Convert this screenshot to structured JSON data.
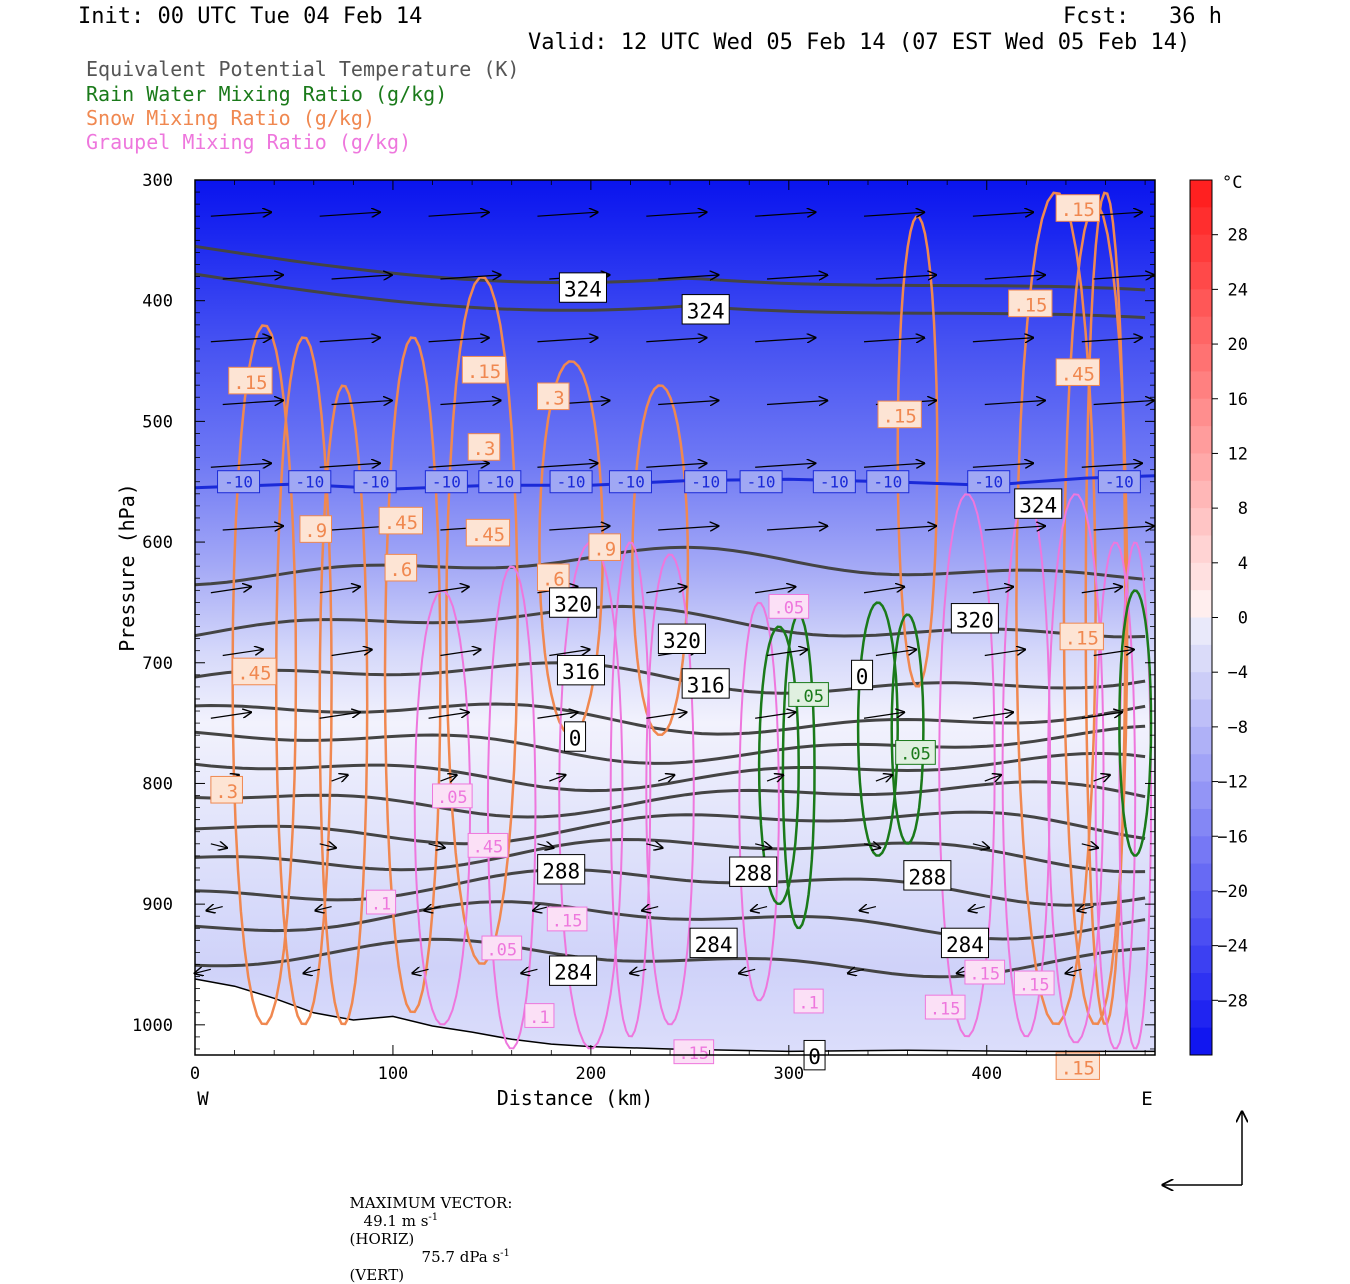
{
  "header": {
    "init": "Init: 00 UTC Tue 04 Feb 14",
    "fcst": "Fcst:   36 h",
    "valid": "Valid: 12 UTC Wed 05 Feb 14 (07 EST Wed 05 Feb 14)"
  },
  "legend": [
    {
      "text": "Equivalent Potential Temperature (K)",
      "color": "#555555"
    },
    {
      "text": "Rain Water Mixing Ratio (g/kg)",
      "color": "#1a7a1a"
    },
    {
      "text": "Snow Mixing Ratio (g/kg)",
      "color": "#f08850"
    },
    {
      "text": "Graupel Mixing Ratio (g/kg)",
      "color": "#ee77dd"
    }
  ],
  "footer": {
    "max_vector_label": "MAXIMUM VECTOR:",
    "horiz": "49.1 m s",
    "horiz_unit": "(HORIZ)",
    "vert": "75.7 dPa s",
    "vert_unit": "(VERT)",
    "exp": "-1"
  },
  "chart_data": {
    "type": "contour cross-section",
    "xlabel": "Distance (km)",
    "ylabel": "Pressure (hPa)",
    "xlim": [
      0,
      485
    ],
    "ylim": [
      1025,
      300
    ],
    "xticks": [
      0,
      100,
      200,
      300,
      400
    ],
    "yticks": [
      300,
      400,
      500,
      600,
      700,
      800,
      900,
      1000
    ],
    "x_end_labels": {
      "left": "W",
      "right": "E"
    },
    "colorbar": {
      "unit": "°C",
      "ticks": [
        28,
        24,
        20,
        16,
        12,
        8,
        4,
        0,
        -4,
        -8,
        -12,
        -16,
        -20,
        -24,
        -28
      ],
      "range": [
        -32,
        32
      ]
    },
    "theta_e_contours": [
      {
        "label": "324",
        "x": 196,
        "p": 390
      },
      {
        "label": "324",
        "x": 258,
        "p": 408
      },
      {
        "label": "320",
        "x": 191,
        "p": 651
      },
      {
        "label": "320",
        "x": 246,
        "p": 681
      },
      {
        "label": "320",
        "x": 394,
        "p": 664
      },
      {
        "label": "316",
        "x": 195,
        "p": 707
      },
      {
        "label": "316",
        "x": 258,
        "p": 718
      },
      {
        "label": "324",
        "x": 426,
        "p": 569
      },
      {
        "label": "288",
        "x": 185,
        "p": 872
      },
      {
        "label": "288",
        "x": 282,
        "p": 874
      },
      {
        "label": "288",
        "x": 370,
        "p": 877
      },
      {
        "label": "284",
        "x": 191,
        "p": 956
      },
      {
        "label": "284",
        "x": 262,
        "p": 933
      },
      {
        "label": "284",
        "x": 389,
        "p": 933
      },
      {
        "label": "0",
        "x": 192,
        "p": 762
      },
      {
        "label": "0",
        "x": 337,
        "p": 711
      },
      {
        "label": "0",
        "x": 313,
        "p": 1026
      }
    ],
    "temperature_minus10_line": {
      "label": "-10",
      "points": [
        [
          0,
          555
        ],
        [
          50,
          552
        ],
        [
          100,
          556
        ],
        [
          150,
          553
        ],
        [
          200,
          553
        ],
        [
          250,
          549
        ],
        [
          300,
          548
        ],
        [
          350,
          550
        ],
        [
          400,
          553
        ],
        [
          450,
          547
        ],
        [
          485,
          545
        ]
      ],
      "label_x": [
        22,
        58,
        91,
        127,
        154,
        190,
        220,
        258,
        286,
        323,
        350,
        401,
        467
      ]
    },
    "snow_labels": [
      {
        "label": ".15",
        "x": 28,
        "p": 467
      },
      {
        "label": ".15",
        "x": 146,
        "p": 458
      },
      {
        "label": ".3",
        "x": 181,
        "p": 480
      },
      {
        "label": ".3",
        "x": 146,
        "p": 522
      },
      {
        "label": ".15",
        "x": 356,
        "p": 495
      },
      {
        "label": ".15",
        "x": 422,
        "p": 403
      },
      {
        "label": ".15",
        "x": 446,
        "p": 324
      },
      {
        "label": ".45",
        "x": 446,
        "p": 460
      },
      {
        "label": ".9",
        "x": 61,
        "p": 590
      },
      {
        "label": ".45",
        "x": 104,
        "p": 583
      },
      {
        "label": ".45",
        "x": 148,
        "p": 593
      },
      {
        "label": ".6",
        "x": 104,
        "p": 622
      },
      {
        "label": ".6",
        "x": 181,
        "p": 630
      },
      {
        "label": ".9",
        "x": 207,
        "p": 605
      },
      {
        "label": ".45",
        "x": 30,
        "p": 708
      },
      {
        "label": ".3",
        "x": 16,
        "p": 806
      },
      {
        "label": ".15",
        "x": 446,
        "p": 1035
      },
      {
        "label": ".15",
        "x": 448,
        "p": 679
      }
    ],
    "graupel_labels": [
      {
        "label": ".05",
        "x": 300,
        "p": 654
      },
      {
        "label": ".05",
        "x": 130,
        "p": 811
      },
      {
        "label": ".45",
        "x": 148,
        "p": 852
      },
      {
        "label": ".15",
        "x": 188,
        "p": 913
      },
      {
        "label": ".05",
        "x": 155,
        "p": 937
      },
      {
        "label": ".1",
        "x": 94,
        "p": 899
      },
      {
        "label": ".1",
        "x": 174,
        "p": 993
      },
      {
        "label": ".1",
        "x": 310,
        "p": 981
      },
      {
        "label": ".15",
        "x": 252,
        "p": 1023
      },
      {
        "label": ".15",
        "x": 399,
        "p": 957
      },
      {
        "label": ".15",
        "x": 424,
        "p": 966
      },
      {
        "label": ".15",
        "x": 379,
        "p": 986
      }
    ],
    "rain_labels": [
      {
        "label": ".05",
        "x": 310,
        "p": 727
      },
      {
        "label": ".05",
        "x": 364,
        "p": 775
      }
    ],
    "wind_vectors": [
      {
        "x": 14,
        "p": 330,
        "u": 1,
        "w": 0.05
      },
      {
        "x": 40,
        "p": 380,
        "u": 0.9,
        "w": 0.05
      },
      {
        "x": 70,
        "p": 420,
        "u": 1,
        "w": 0.1
      },
      {
        "x": 120,
        "p": 340,
        "u": 0.95,
        "w": 0.05
      }
    ]
  }
}
